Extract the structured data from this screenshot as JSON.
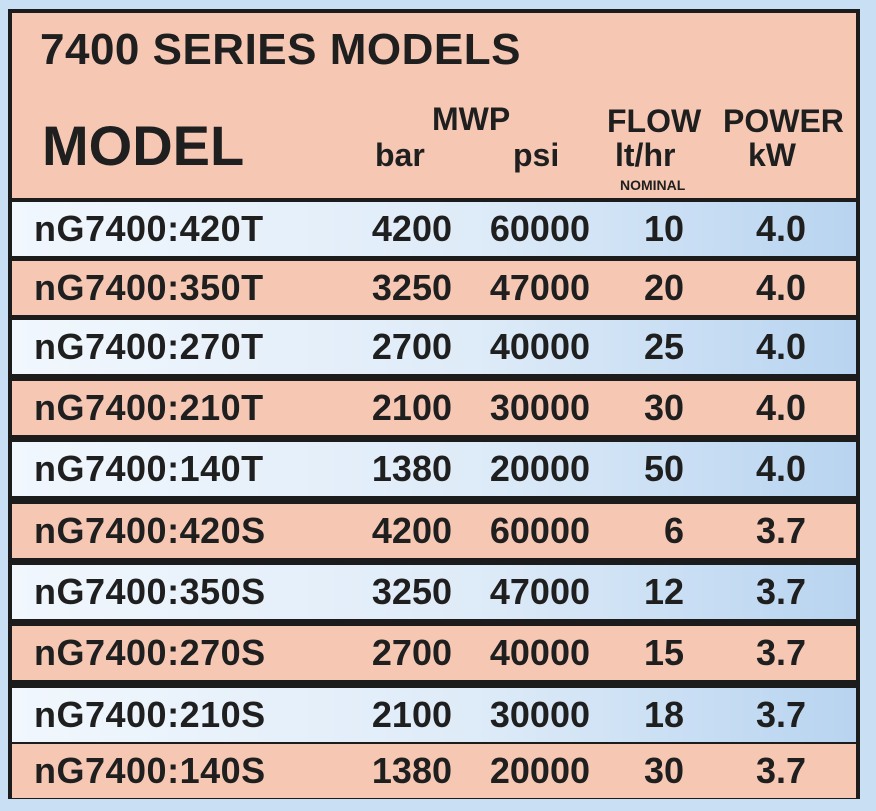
{
  "title": "7400 SERIES MODELS",
  "headers": {
    "model": "MODEL",
    "mwp": "MWP",
    "bar": "bar",
    "psi": "psi",
    "flow": "FLOW",
    "flow_unit": "lt/hr",
    "flow_note": "NOMINAL",
    "power": "POWER",
    "power_unit": "kW"
  },
  "colors": {
    "pink_row": "#f6c8b4",
    "blue_row": "#deebf8",
    "border": "#1c1c1c"
  },
  "rows": [
    {
      "model": "nG7400:420T",
      "bar": "4200",
      "psi": "60000",
      "flow": "10",
      "power": "4.0"
    },
    {
      "model": "nG7400:350T",
      "bar": "3250",
      "psi": "47000",
      "flow": "20",
      "power": "4.0"
    },
    {
      "model": "nG7400:270T",
      "bar": "2700",
      "psi": "40000",
      "flow": "25",
      "power": "4.0"
    },
    {
      "model": "nG7400:210T",
      "bar": "2100",
      "psi": "30000",
      "flow": "30",
      "power": "4.0"
    },
    {
      "model": "nG7400:140T",
      "bar": "1380",
      "psi": "20000",
      "flow": "50",
      "power": "4.0"
    },
    {
      "model": "nG7400:420S",
      "bar": "4200",
      "psi": "60000",
      "flow": "6",
      "power": "3.7"
    },
    {
      "model": "nG7400:350S",
      "bar": "3250",
      "psi": "47000",
      "flow": "12",
      "power": "3.7"
    },
    {
      "model": "nG7400:270S",
      "bar": "2700",
      "psi": "40000",
      "flow": "15",
      "power": "3.7"
    },
    {
      "model": "nG7400:210S",
      "bar": "2100",
      "psi": "30000",
      "flow": "18",
      "power": "3.7"
    },
    {
      "model": "nG7400:140S",
      "bar": "1380",
      "psi": "20000",
      "flow": "30",
      "power": "3.7"
    }
  ]
}
